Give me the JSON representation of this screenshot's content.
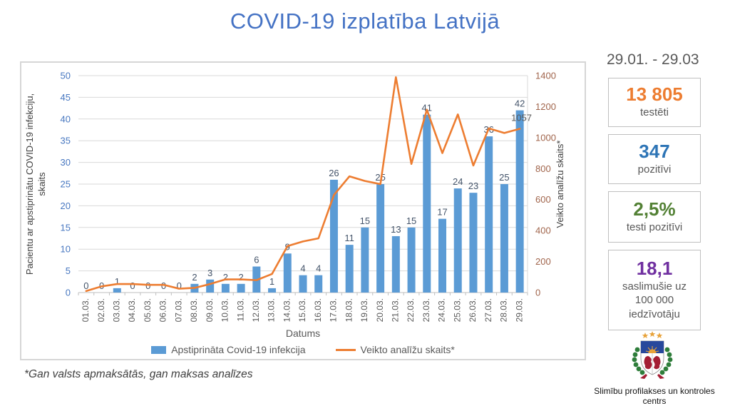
{
  "title": "COVID-19 izplatība Latvijā",
  "colors": {
    "title": "#4472C4",
    "data_labels": "#44546A",
    "category_labels": "#595959",
    "axis_titles": "#404040",
    "line_point_label": "#595959"
  },
  "chart_data": {
    "type": "bar+line",
    "categories": [
      "01.03.",
      "02.03.",
      "03.03.",
      "04.03.",
      "05.03.",
      "06.03.",
      "07.03.",
      "08.03.",
      "09.03.",
      "10.03.",
      "11.03.",
      "12.03.",
      "13.03.",
      "14.03.",
      "15.03.",
      "16.03.",
      "17.03.",
      "18.03.",
      "19.03.",
      "20.03.",
      "21.03.",
      "22.03.",
      "23.03.",
      "24.03.",
      "25.03.",
      "26.03.",
      "27.03.",
      "28.03.",
      "29.03."
    ],
    "xlabel": "Datums",
    "grid": true,
    "legend_position": "bottom",
    "series": [
      {
        "name": "Apstiprināta Covid-19 infekcija",
        "type": "bar",
        "axis": "left",
        "color": "#5B9BD5",
        "values": [
          0,
          0,
          1,
          0,
          0,
          0,
          0,
          2,
          3,
          2,
          2,
          6,
          1,
          9,
          4,
          4,
          26,
          11,
          15,
          25,
          13,
          15,
          41,
          17,
          24,
          23,
          36,
          25,
          42
        ]
      },
      {
        "name": "Veikto analīžu skaits*",
        "type": "line",
        "axis": "right",
        "color": "#ED7D31",
        "values": [
          10,
          40,
          55,
          55,
          50,
          50,
          25,
          30,
          55,
          85,
          85,
          80,
          120,
          300,
          330,
          350,
          630,
          750,
          720,
          700,
          1390,
          830,
          1180,
          900,
          1150,
          820,
          1060,
          1030,
          1057
        ],
        "point_label": {
          "category": "29.03.",
          "text": "1057"
        }
      }
    ],
    "left_axis": {
      "title_lines": [
        "Pacientu ar apstiprinātu  COVID-19 infekciju,",
        "skaits"
      ],
      "min": 0,
      "max": 50,
      "step": 5,
      "tick_color": "#4777C0"
    },
    "right_axis": {
      "title": "Veikto analīžu skaits*",
      "min": 0,
      "max": 1400,
      "step": 200,
      "tick_color": "#A0644B"
    }
  },
  "sidebar": {
    "period": "29.01. - 29.03",
    "stats": [
      {
        "value": "13 805",
        "label": "testēti",
        "color": "#ED7D31"
      },
      {
        "value": "347",
        "label": "pozitīvi",
        "color": "#2E75B6"
      },
      {
        "value": "2,5%",
        "label": "testi pozitīvi",
        "color": "#538135"
      },
      {
        "value": "18,1",
        "label": "saslimušie uz 100 000 iedzīvotāju",
        "color": "#7030A0"
      }
    ]
  },
  "footnote": "*Gan valsts apmaksātās, gan maksas analīzes",
  "logo": {
    "caption": "Slimību profilakses un kontroles centrs"
  }
}
